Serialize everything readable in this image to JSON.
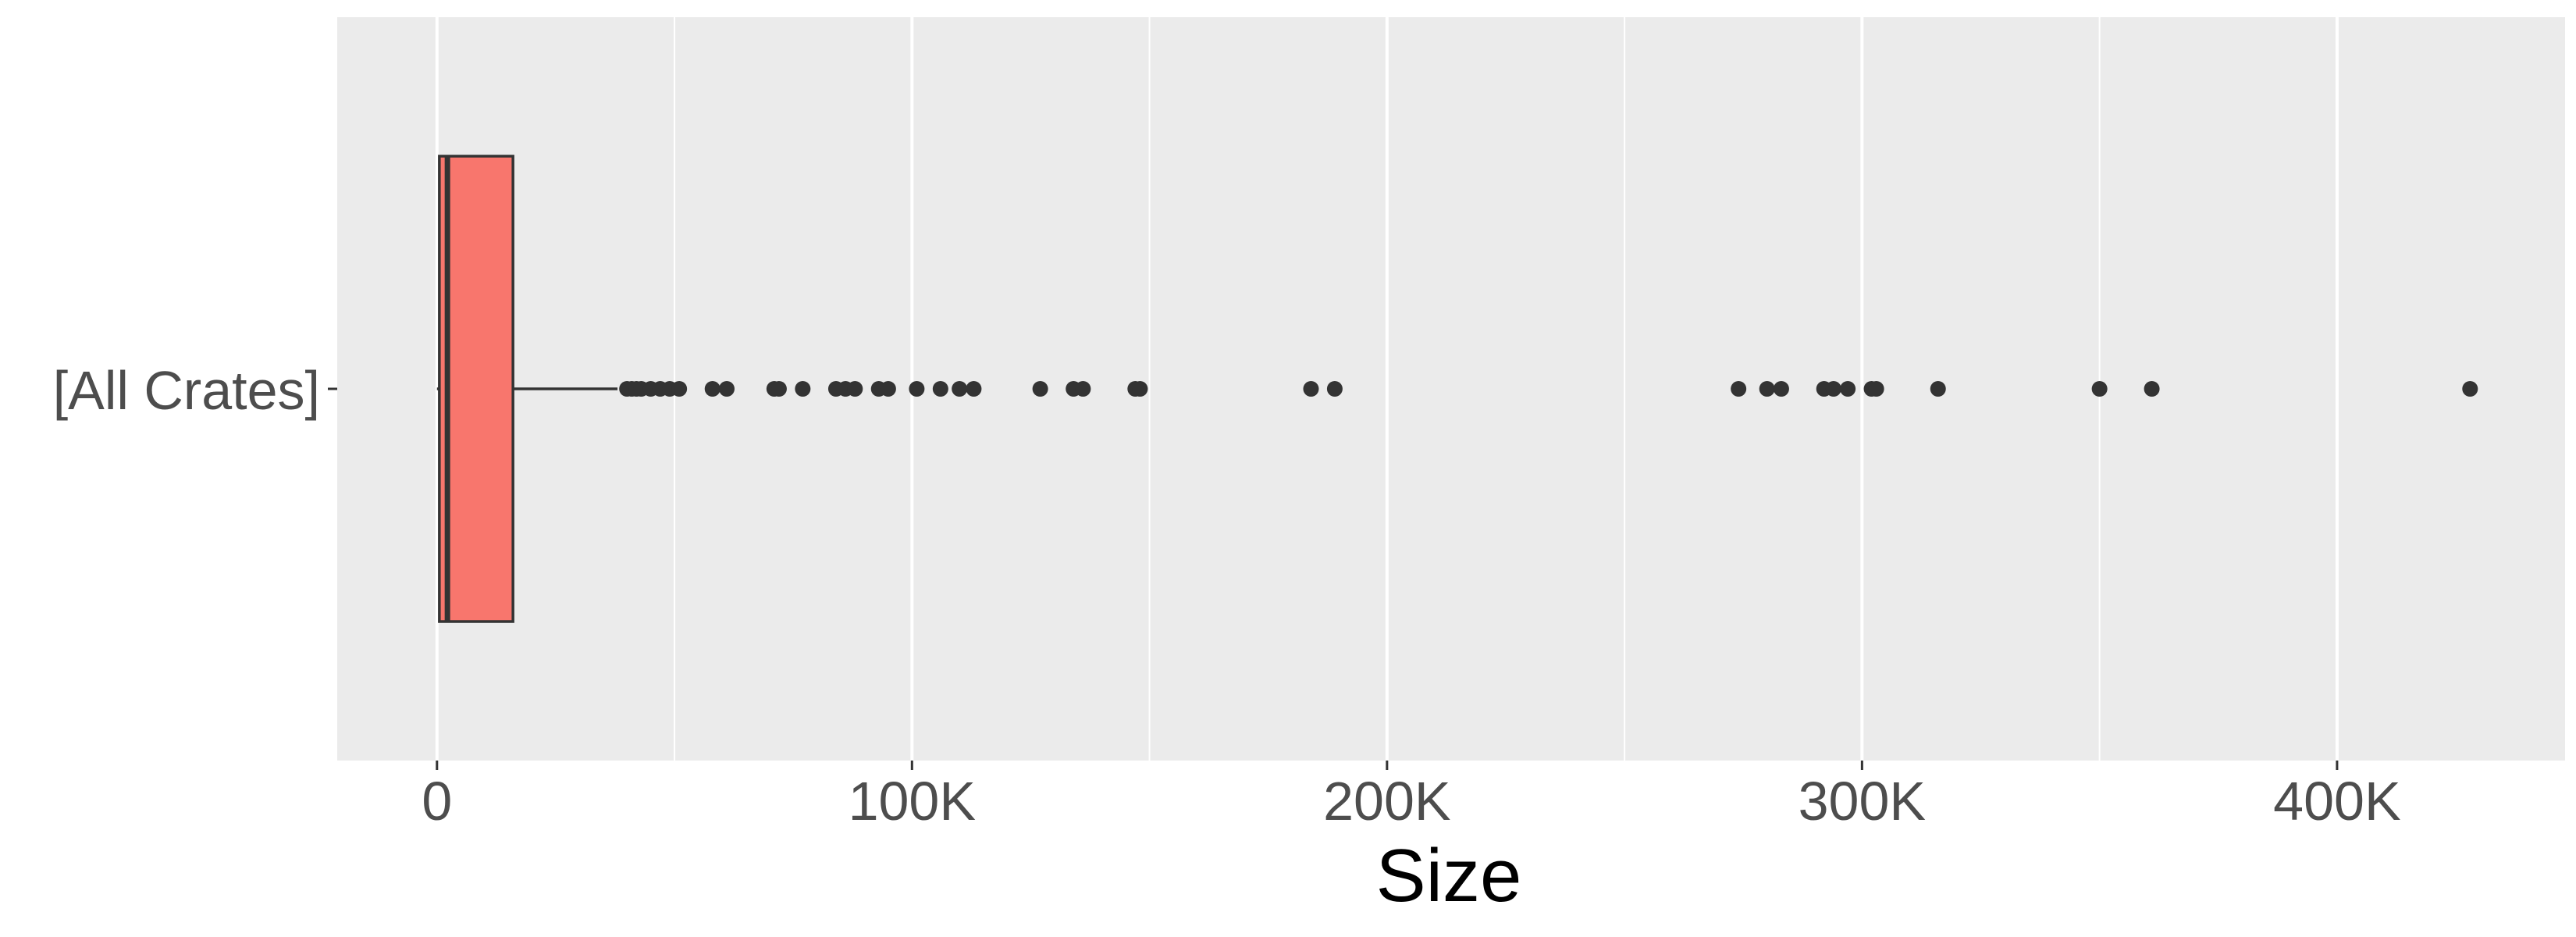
{
  "chart_data": {
    "type": "boxplot",
    "title": "",
    "xlabel": "Size",
    "ylabel": "",
    "orientation": "horizontal",
    "grid": true,
    "legend": "none",
    "xlim": [
      -21000,
      448000
    ],
    "x_ticks": [
      0,
      100000,
      200000,
      300000,
      400000
    ],
    "x_tick_labels": [
      "0",
      "100K",
      "200K",
      "300K",
      "400K"
    ],
    "categories": [
      "[All Crates]"
    ],
    "box": {
      "min": 0,
      "q1": 500,
      "median": 2200,
      "q3": 16000,
      "whisker_high": 38000
    },
    "outliers": [
      40000,
      41000,
      42000,
      43000,
      45000,
      47000,
      49000,
      51000,
      58000,
      61000,
      71000,
      72000,
      77000,
      84000,
      86000,
      88000,
      93000,
      95000,
      101000,
      106000,
      110000,
      113000,
      127000,
      134000,
      136000,
      147000,
      148000,
      184000,
      189000,
      274000,
      280000,
      283000,
      292000,
      294000,
      297000,
      302000,
      303000,
      316000,
      350000,
      361000,
      428000
    ],
    "colors": {
      "box_fill": "#f8766d",
      "box_stroke": "#333333",
      "points": "#333333",
      "panel": "#ebebeb",
      "grid": "#ffffff"
    }
  }
}
